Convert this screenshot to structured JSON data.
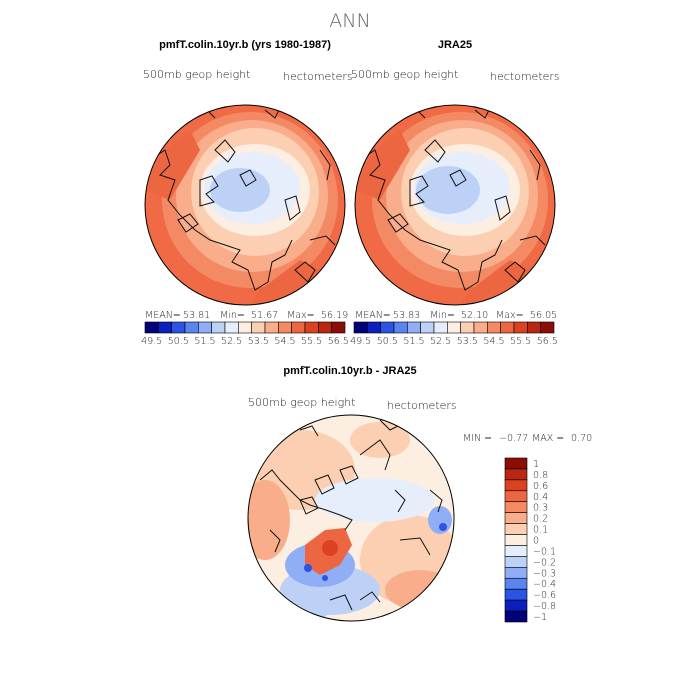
{
  "page": {
    "title": "ANN"
  },
  "colors": {
    "scale_abs": [
      "#00007a",
      "#0a1fbe",
      "#2a54e6",
      "#5a84ef",
      "#8faef5",
      "#bdd1f7",
      "#e6eefb",
      "#fdeee2",
      "#fccfb2",
      "#f9ad8a",
      "#f48a64",
      "#ec6641",
      "#dc4221",
      "#b92612",
      "#8c0c06"
    ],
    "scale_diff": [
      "#00007a",
      "#0a1fbe",
      "#2a54e6",
      "#5a84ef",
      "#8faef5",
      "#bdd1f7",
      "#e6eefb",
      "#fdeee2",
      "#fccfb2",
      "#f9ad8a",
      "#f48a64",
      "#ec6641",
      "#dc4221",
      "#b92612",
      "#8c0c06"
    ],
    "land": "#111111"
  },
  "chart_data": [
    {
      "type": "heatmap",
      "projection": "north-polar-stereographic",
      "title": "pmfT.colin.10yr.b (yrs 1980-1987)",
      "left_label": "500mb geop height",
      "right_label": "hectometers",
      "stats": {
        "mean_label": "MEAN=",
        "mean": "53.81",
        "min_label": "Min=",
        "min": "51.67",
        "max_label": "Max=",
        "max": "56.19"
      },
      "colorbar": {
        "orientation": "horizontal",
        "ticks": [
          "49.5",
          "50.5",
          "51.5",
          "52.5",
          "53.5",
          "54.5",
          "55.5",
          "56.5"
        ],
        "levels": [
          49.5,
          50,
          50.5,
          51,
          51.5,
          52,
          52.5,
          53,
          53.5,
          54,
          54.5,
          55,
          55.5,
          56,
          56.5
        ]
      },
      "field_range": [
        51.67,
        56.19
      ]
    },
    {
      "type": "heatmap",
      "projection": "north-polar-stereographic",
      "title": "JRA25",
      "left_label": "500mb geop height",
      "right_label": "hectometers",
      "stats": {
        "mean_label": "MEAN=",
        "mean": "53.83",
        "min_label": "Min=",
        "min": "52.10",
        "max_label": "Max=",
        "max": "56.05"
      },
      "colorbar": {
        "orientation": "horizontal",
        "ticks": [
          "49.5",
          "50.5",
          "51.5",
          "52.5",
          "53.5",
          "54.5",
          "55.5",
          "56.5"
        ],
        "levels": [
          49.5,
          50,
          50.5,
          51,
          51.5,
          52,
          52.5,
          53,
          53.5,
          54,
          54.5,
          55,
          55.5,
          56,
          56.5
        ]
      },
      "field_range": [
        52.1,
        56.05
      ]
    },
    {
      "type": "heatmap",
      "projection": "north-polar-stereographic",
      "title": "pmfT.colin.10yr.b - JRA25",
      "left_label": "500mb geop height",
      "right_label": "hectometers",
      "stats": {
        "min_label": "MIN =",
        "min": "−0.77",
        "max_label": "MAX =",
        "max": "0.70"
      },
      "colorbar": {
        "orientation": "vertical",
        "ticks": [
          "1",
          "0.8",
          "0.6",
          "0.4",
          "0.3",
          "0.2",
          "0.1",
          "0",
          "−0.1",
          "−0.2",
          "−0.3",
          "−0.4",
          "−0.6",
          "−0.8",
          "−1"
        ],
        "levels": [
          1,
          0.8,
          0.6,
          0.4,
          0.3,
          0.2,
          0.1,
          0,
          -0.1,
          -0.2,
          -0.3,
          -0.4,
          -0.6,
          -0.8,
          -1
        ]
      },
      "field_range": [
        -0.77,
        0.7
      ]
    }
  ]
}
